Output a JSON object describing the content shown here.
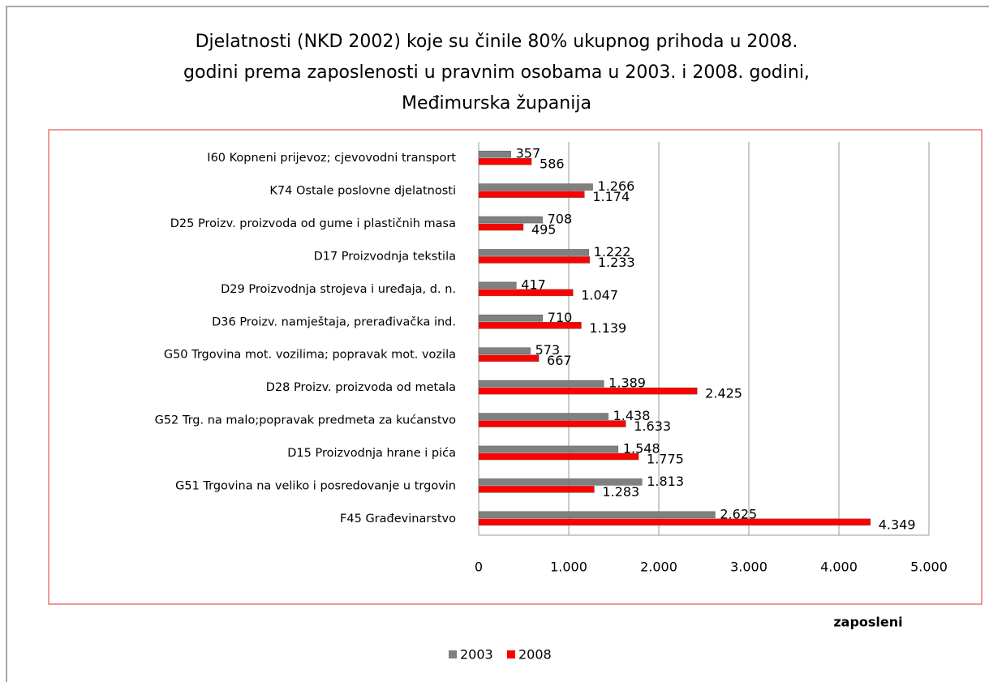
{
  "chart_data": {
    "type": "bar",
    "orientation": "horizontal",
    "title": [
      "Djelatnosti (NKD 2002) koje su činile 80% ukupnog prihoda u 2008.",
      "godini prema zaposlenosti u pravnim osobama u 2003. i 2008. godini,",
      "Međimurska županija"
    ],
    "x_label": "zaposleni",
    "categories": [
      "I60 Kopneni prijevoz; cjevovodni transport",
      "K74 Ostale poslovne djelatnosti",
      "D25 Proizv. proizvoda od gume i plastičnih masa",
      "D17 Proizvodnja tekstila",
      "D29 Proizvodnja strojeva i uređaja, d. n.",
      "D36 Proizv. namještaja, prerađivačka ind.",
      "G50 Trgovina mot. vozilima; popravak mot. vozila",
      "D28 Proizv. proizvoda od metala",
      "G52 Trg. na malo;popravak predmeta za kućanstvo",
      "D15 Proizvodnja hrane i pića",
      "G51 Trgovina na veliko i posredovanje u trgovin",
      "F45 Građevinarstvo"
    ],
    "series": [
      {
        "name": "2003",
        "color": "#808080",
        "values": [
          357,
          1266,
          708,
          1222,
          417,
          710,
          573,
          1389,
          1438,
          1548,
          1813,
          2625
        ],
        "value_labels": [
          "357",
          "1.266",
          "708",
          "1.222",
          "417",
          "710",
          "573",
          "1.389",
          "1.438",
          "1.548",
          "1.813",
          "2.625"
        ]
      },
      {
        "name": "2008",
        "color": "#ff0000",
        "values": [
          586,
          1174,
          495,
          1233,
          1047,
          1139,
          667,
          2425,
          1633,
          1775,
          1283,
          4349
        ],
        "value_labels": [
          "586",
          "1.174",
          "495",
          "1.233",
          "1.047",
          "1.139",
          "667",
          "2.425",
          "1.633",
          "1.775",
          "1.283",
          "4.349"
        ]
      }
    ],
    "xlim": [
      0,
      5000
    ],
    "xticks": [
      0,
      {
        "value": 1000,
        "label": "1.000"
      },
      {
        "value": 2000,
        "label": "2.000"
      },
      {
        "value": 3000,
        "label": "3.000"
      },
      {
        "value": 4000,
        "label": "4.000"
      },
      {
        "value": 5000,
        "label": "5.000"
      }
    ],
    "grid": true,
    "legend": "bottom"
  }
}
